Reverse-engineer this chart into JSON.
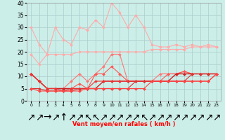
{
  "xlabel": "Vent moyen/en rafales ( km/h )",
  "background_color": "#cceee8",
  "grid_color": "#aacccc",
  "xlim": [
    -0.5,
    23.5
  ],
  "ylim": [
    0,
    40
  ],
  "yticks": [
    0,
    5,
    10,
    15,
    20,
    25,
    30,
    35,
    40
  ],
  "xticks": [
    0,
    1,
    2,
    3,
    4,
    5,
    6,
    7,
    8,
    9,
    10,
    11,
    12,
    13,
    14,
    15,
    16,
    17,
    18,
    19,
    20,
    21,
    22,
    23
  ],
  "series": [
    {
      "color": "#ffaaaa",
      "lw": 0.8,
      "marker": "D",
      "markersize": 2,
      "values": [
        30,
        23,
        19,
        30,
        25,
        23,
        30,
        29,
        33,
        30,
        40,
        36,
        30,
        35,
        30,
        23,
        22,
        22,
        23,
        22,
        23,
        22,
        23,
        22
      ]
    },
    {
      "color": "#ffaaaa",
      "lw": 0.8,
      "marker": "D",
      "markersize": 2,
      "values": [
        19,
        15,
        19,
        19,
        19,
        19,
        20,
        20,
        20,
        20,
        20,
        20,
        20,
        20,
        20,
        21,
        21,
        21,
        21,
        21,
        22,
        22,
        22,
        22
      ]
    },
    {
      "color": "#ff7777",
      "lw": 0.8,
      "marker": "D",
      "markersize": 2,
      "values": [
        11,
        8,
        5,
        5,
        5,
        8,
        11,
        8,
        11,
        14,
        19,
        19,
        8,
        8,
        8,
        8,
        11,
        11,
        11,
        12,
        11,
        11,
        11,
        11
      ]
    },
    {
      "color": "#ff5555",
      "lw": 0.8,
      "marker": "D",
      "markersize": 2,
      "values": [
        11,
        8,
        5,
        5,
        5,
        5,
        7,
        5,
        11,
        11,
        14,
        11,
        8,
        8,
        8,
        8,
        8,
        11,
        11,
        12,
        11,
        11,
        11,
        11
      ]
    },
    {
      "color": "#cc2222",
      "lw": 1.0,
      "marker": "D",
      "markersize": 2,
      "values": [
        11,
        8,
        5,
        5,
        5,
        5,
        5,
        5,
        5,
        8,
        8,
        8,
        8,
        8,
        8,
        8,
        8,
        8,
        11,
        11,
        11,
        11,
        11,
        11
      ]
    },
    {
      "color": "#ee3333",
      "lw": 0.8,
      "marker": "D",
      "markersize": 2,
      "values": [
        11,
        8,
        5,
        5,
        4,
        5,
        5,
        5,
        8,
        8,
        8,
        8,
        8,
        8,
        8,
        8,
        8,
        8,
        8,
        8,
        8,
        8,
        8,
        11
      ]
    },
    {
      "color": "#dd3333",
      "lw": 0.8,
      "marker": "D",
      "markersize": 2,
      "values": [
        5,
        5,
        4,
        4,
        4,
        4,
        5,
        5,
        5,
        5,
        5,
        5,
        5,
        8,
        8,
        8,
        8,
        8,
        8,
        8,
        11,
        11,
        11,
        11
      ]
    },
    {
      "color": "#ff4444",
      "lw": 0.8,
      "marker": "D",
      "markersize": 2,
      "values": [
        5,
        4,
        4,
        4,
        4,
        4,
        4,
        5,
        5,
        5,
        5,
        5,
        5,
        5,
        5,
        8,
        8,
        8,
        8,
        8,
        8,
        8,
        8,
        11
      ]
    }
  ],
  "wind_arrows": [
    "↗",
    "↗",
    "→",
    "↗",
    "↑",
    "↗",
    "↗",
    "↖",
    "↖",
    "↗",
    "↗",
    "↗",
    "↗",
    "↗",
    "↖",
    "↗",
    "↗",
    "↗",
    "↗",
    "↗",
    "↗",
    "↗",
    "↗",
    "↗"
  ]
}
